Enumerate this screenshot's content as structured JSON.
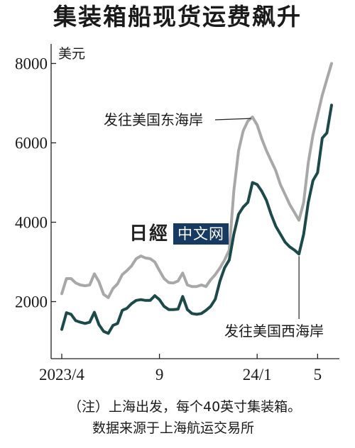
{
  "chart_data": {
    "type": "line",
    "title": "集装箱船现货运费飙升",
    "unit_label": "美元",
    "x_ticks": [
      "2023/4",
      "9",
      "24/1",
      "5"
    ],
    "y_ticks": [
      2000,
      4000,
      6000,
      8000
    ],
    "ylim": [
      0,
      8800
    ],
    "grid": false,
    "series": [
      {
        "name": "发往美国东海岸",
        "color": "#a8a8a8",
        "values": [
          2200,
          2580,
          2580,
          2470,
          2420,
          2400,
          2420,
          2700,
          2500,
          2180,
          2100,
          2330,
          2450,
          2680,
          2780,
          2900,
          3080,
          3150,
          3100,
          3080,
          3000,
          2780,
          2580,
          2480,
          2470,
          2520,
          2720,
          2420,
          2380,
          2380,
          2420,
          2380,
          2550,
          2680,
          2850,
          3050,
          3300,
          4800,
          5800,
          6300,
          6550,
          6650,
          6450,
          6100,
          5800,
          5550,
          5300,
          4950,
          4700,
          4450,
          4250,
          4050,
          4500,
          5500,
          6200,
          6700,
          7200,
          7600,
          8000
        ]
      },
      {
        "name": "发往美国西海岸",
        "color": "#1c4a4a",
        "values": [
          1300,
          1720,
          1680,
          1520,
          1480,
          1450,
          1480,
          1730,
          1420,
          1250,
          1200,
          1400,
          1450,
          1780,
          1830,
          1950,
          2030,
          2050,
          2030,
          2030,
          2150,
          2050,
          1880,
          1800,
          1800,
          1810,
          2130,
          1800,
          1700,
          1680,
          1700,
          1780,
          1880,
          2060,
          2520,
          2850,
          3050,
          3700,
          4200,
          4380,
          4500,
          5000,
          4950,
          4780,
          4550,
          4200,
          3900,
          3700,
          3500,
          3380,
          3300,
          3200,
          3700,
          4500,
          5050,
          5250,
          6120,
          6250,
          6950
        ]
      }
    ],
    "annotations": [
      {
        "text": "发往美国东海岸",
        "series": 0
      },
      {
        "text": "发往美国西海岸",
        "series": 1
      }
    ]
  },
  "watermark": {
    "logo": "日經",
    "box": "中文网"
  },
  "notes": {
    "line1": "（注）上海出发，每个40英寸集装箱。",
    "line2": "数据来源于上海航运交易所"
  }
}
